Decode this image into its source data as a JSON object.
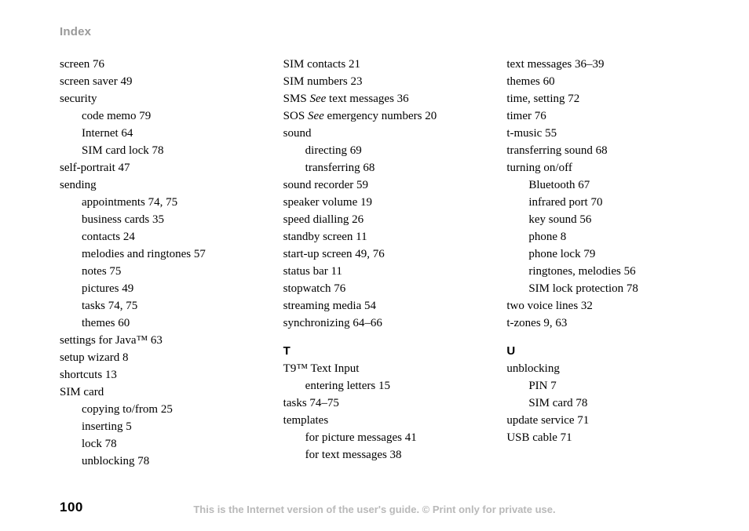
{
  "header": "Index",
  "pageNumber": "100",
  "footer": "This is the Internet version of the user's guide. © Print only for private use.",
  "col1": [
    {
      "t": "entry",
      "text": "screen 76"
    },
    {
      "t": "entry",
      "text": "screen saver 49"
    },
    {
      "t": "entry",
      "text": "security"
    },
    {
      "t": "sub",
      "text": "code memo 79"
    },
    {
      "t": "sub",
      "text": "Internet 64"
    },
    {
      "t": "sub",
      "text": "SIM card lock 78"
    },
    {
      "t": "entry",
      "text": "self-portrait 47"
    },
    {
      "t": "entry",
      "text": "sending"
    },
    {
      "t": "sub",
      "text": "appointments 74, 75"
    },
    {
      "t": "sub",
      "text": "business cards 35"
    },
    {
      "t": "sub",
      "text": "contacts 24"
    },
    {
      "t": "sub",
      "text": "melodies and ringtones 57"
    },
    {
      "t": "sub",
      "text": "notes 75"
    },
    {
      "t": "sub",
      "text": "pictures 49"
    },
    {
      "t": "sub",
      "text": "tasks 74, 75"
    },
    {
      "t": "sub",
      "text": "themes 60"
    },
    {
      "t": "entry",
      "text": "settings for Java™ 63"
    },
    {
      "t": "entry",
      "text": "setup wizard 8"
    },
    {
      "t": "entry",
      "text": "shortcuts 13"
    },
    {
      "t": "entry",
      "text": "SIM card"
    },
    {
      "t": "sub",
      "text": "copying to/from 25"
    },
    {
      "t": "sub",
      "text": "inserting 5"
    },
    {
      "t": "sub",
      "text": "lock 78"
    },
    {
      "t": "sub",
      "text": "unblocking 78"
    }
  ],
  "col2": [
    {
      "t": "entry",
      "text": "SIM contacts 21"
    },
    {
      "t": "entry",
      "text": "SIM numbers 23"
    },
    {
      "t": "see",
      "pre": "SMS ",
      "see": "See",
      "post": " text messages 36"
    },
    {
      "t": "see",
      "pre": "SOS ",
      "see": "See",
      "post": " emergency numbers 20"
    },
    {
      "t": "entry",
      "text": "sound"
    },
    {
      "t": "sub",
      "text": "directing 69"
    },
    {
      "t": "sub",
      "text": "transferring 68"
    },
    {
      "t": "entry",
      "text": "sound recorder 59"
    },
    {
      "t": "entry",
      "text": "speaker volume 19"
    },
    {
      "t": "entry",
      "text": "speed dialling 26"
    },
    {
      "t": "entry",
      "text": "standby screen 11"
    },
    {
      "t": "entry",
      "text": "start-up screen 49, 76"
    },
    {
      "t": "entry",
      "text": "status bar 11"
    },
    {
      "t": "entry",
      "text": "stopwatch 76"
    },
    {
      "t": "entry",
      "text": "streaming media 54"
    },
    {
      "t": "entry",
      "text": "synchronizing 64–66"
    },
    {
      "t": "letter",
      "text": "T"
    },
    {
      "t": "entry",
      "text": "T9™ Text Input"
    },
    {
      "t": "sub",
      "text": "entering letters 15"
    },
    {
      "t": "entry",
      "text": "tasks 74–75"
    },
    {
      "t": "entry",
      "text": "templates"
    },
    {
      "t": "sub",
      "text": "for picture messages 41"
    },
    {
      "t": "sub",
      "text": "for text messages 38"
    }
  ],
  "col3": [
    {
      "t": "entry",
      "text": "text messages 36–39"
    },
    {
      "t": "entry",
      "text": "themes 60"
    },
    {
      "t": "entry",
      "text": "time, setting 72"
    },
    {
      "t": "entry",
      "text": "timer 76"
    },
    {
      "t": "entry",
      "text": "t-music 55"
    },
    {
      "t": "entry",
      "text": "transferring sound 68"
    },
    {
      "t": "entry",
      "text": "turning on/off"
    },
    {
      "t": "sub",
      "text": "Bluetooth 67"
    },
    {
      "t": "sub",
      "text": "infrared port 70"
    },
    {
      "t": "sub",
      "text": "key sound 56"
    },
    {
      "t": "sub",
      "text": "phone 8"
    },
    {
      "t": "sub",
      "text": "phone lock 79"
    },
    {
      "t": "sub",
      "text": "ringtones, melodies 56"
    },
    {
      "t": "sub",
      "text": "SIM lock protection 78"
    },
    {
      "t": "entry",
      "text": "two voice lines 32"
    },
    {
      "t": "entry",
      "text": "t-zones 9, 63"
    },
    {
      "t": "letter",
      "text": "U"
    },
    {
      "t": "entry",
      "text": "unblocking"
    },
    {
      "t": "sub",
      "text": "PIN 7"
    },
    {
      "t": "sub",
      "text": "SIM card 78"
    },
    {
      "t": "entry",
      "text": "update service 71"
    },
    {
      "t": "entry",
      "text": "USB cable 71"
    }
  ]
}
